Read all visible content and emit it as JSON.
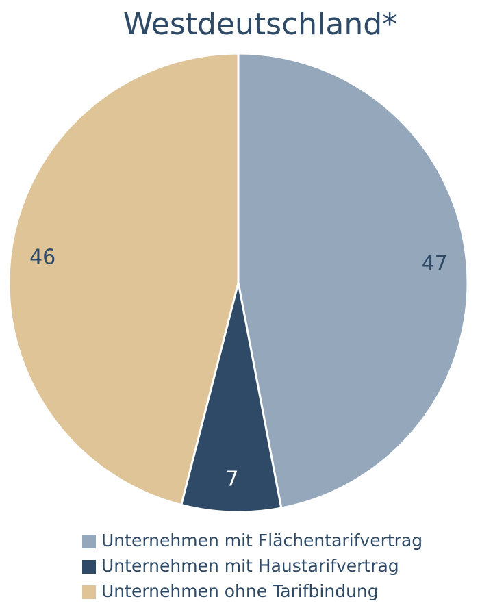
{
  "chart_data": {
    "type": "pie",
    "title": "Westdeutschland*",
    "categories": [
      "Unternehmen mit Flächentarifvertrag",
      "Unternehmen mit Haustarifvertrag",
      "Unternehmen ohne Tarifbindung"
    ],
    "values": [
      47,
      7,
      46
    ],
    "colors": [
      "#94a7bb",
      "#2e4a66",
      "#dfc497"
    ],
    "legend": "bottom"
  }
}
